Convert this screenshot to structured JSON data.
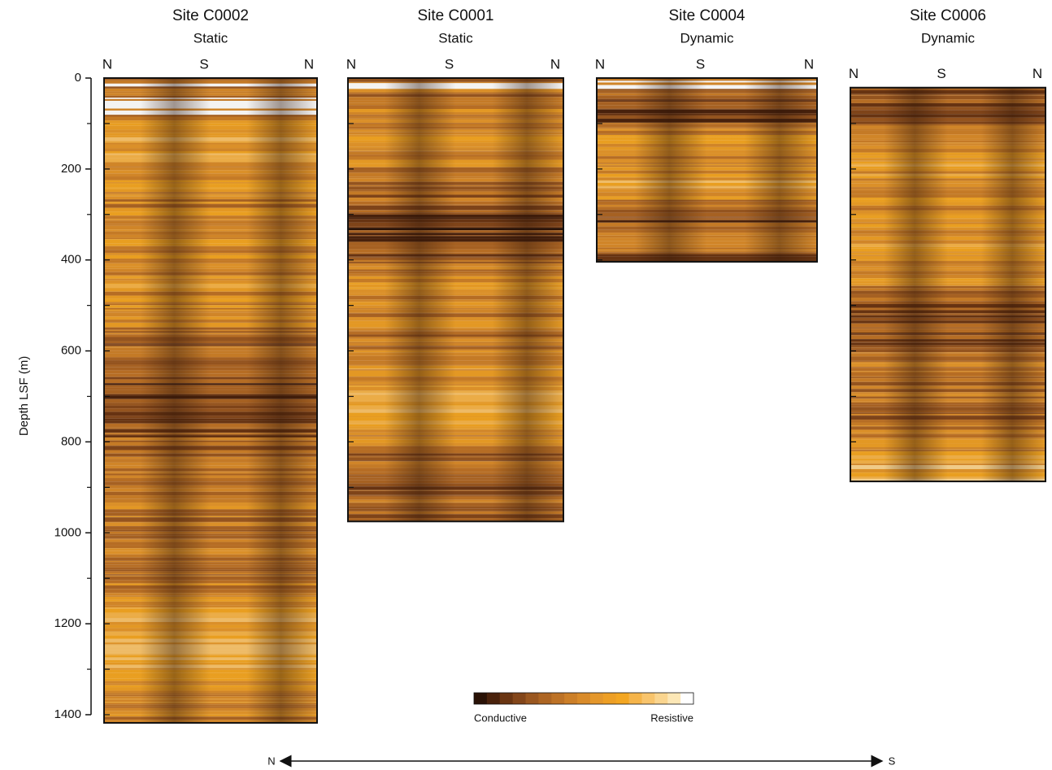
{
  "chart_data": {
    "type": "image-log",
    "ylabel": "Depth LSF (m)",
    "ylim": [
      0,
      1400
    ],
    "yticks": [
      0,
      200,
      400,
      600,
      800,
      1000,
      1200,
      1400
    ],
    "minor_yticks": [
      100,
      300,
      500,
      700,
      900,
      1100,
      1300
    ],
    "panels": [
      {
        "title": "Site C0002",
        "subtitle": "Static",
        "compass": [
          "N",
          "S",
          "N"
        ],
        "top": 0,
        "bottom": 1418
      },
      {
        "title": "Site C0001",
        "subtitle": "Static",
        "compass": [
          "N",
          "S",
          "N"
        ],
        "top": 0,
        "bottom": 975
      },
      {
        "title": "Site C0004",
        "subtitle": "Dynamic",
        "compass": [
          "N",
          "S",
          "N"
        ],
        "top": 0,
        "bottom": 404
      },
      {
        "title": "Site C0006",
        "subtitle": "Dynamic",
        "compass": [
          "N",
          "S",
          "N"
        ],
        "top": 21,
        "bottom": 887
      }
    ],
    "colorbar": {
      "low_label": "Conductive",
      "high_label": "Resistive",
      "colors": [
        "#2a1206",
        "#4a220c",
        "#6a3512",
        "#83461a",
        "#9a5720",
        "#ad6523",
        "#bd7226",
        "#cc7f28",
        "#d98b2a",
        "#e4972b",
        "#ed9f25",
        "#f3a622",
        "#f5b44a",
        "#f8c46c",
        "#fad58f",
        "#fce7b6",
        "#ffffff"
      ]
    },
    "direction": {
      "left": "N",
      "right": "S"
    }
  }
}
